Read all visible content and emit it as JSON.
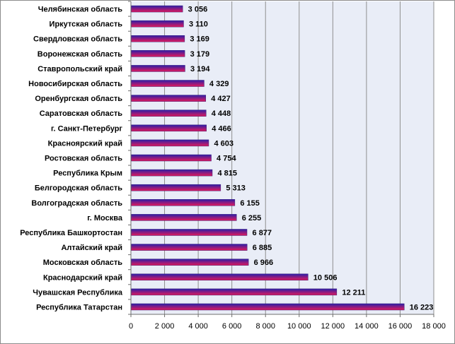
{
  "chart_data": {
    "type": "bar",
    "orientation": "horizontal",
    "categories": [
      "Челябинская  область",
      "Иркутская  область",
      "Свердловская  область",
      "Воронежская  область",
      "Ставропольский  край",
      "Новосибирская  область",
      "Оренбургская  область",
      "Саратовская  область",
      "г. Санкт-Петербург",
      "Красноярский  край",
      "Ростовская  область",
      "Республика  Крым",
      "Белгородская  область",
      "Волгоградская  область",
      "г. Москва",
      "Республика  Башкортостан",
      "Алтайский  край",
      "Московская  область",
      "Краснодарский  край",
      "Чувашская  Республика",
      "Республика  Татарстан"
    ],
    "values": [
      3056,
      3110,
      3169,
      3179,
      3194,
      4329,
      4427,
      4448,
      4466,
      4603,
      4754,
      4815,
      5313,
      6155,
      6255,
      6877,
      6885,
      6966,
      10506,
      12211,
      16223
    ],
    "value_labels": [
      "3 056",
      "3 110",
      "3 169",
      "3 179",
      "3 194",
      "4 329",
      "4 427",
      "4 448",
      "4 466",
      "4 603",
      "4 754",
      "4 815",
      "5 313",
      "6 155",
      "6 255",
      "6 877",
      "6 885",
      "6 966",
      "10 506",
      "12 211",
      "16 223"
    ],
    "x_ticks": [
      0,
      2000,
      4000,
      6000,
      8000,
      10000,
      12000,
      14000,
      16000,
      18000
    ],
    "x_tick_labels": [
      "0",
      "2 000",
      "4 000",
      "6 000",
      "8 000",
      "10 000",
      "12 000",
      "14 000",
      "16 000",
      "18 000"
    ],
    "xlim": [
      0,
      18000
    ],
    "grid": "vertical",
    "title": "",
    "xlabel": "",
    "ylabel": "",
    "colors": {
      "bar_top": "#2a1fa8",
      "bar_bottom": "#e0195a",
      "plot_bg": "#e9edf7",
      "gridline": "#8f8f8f"
    }
  }
}
